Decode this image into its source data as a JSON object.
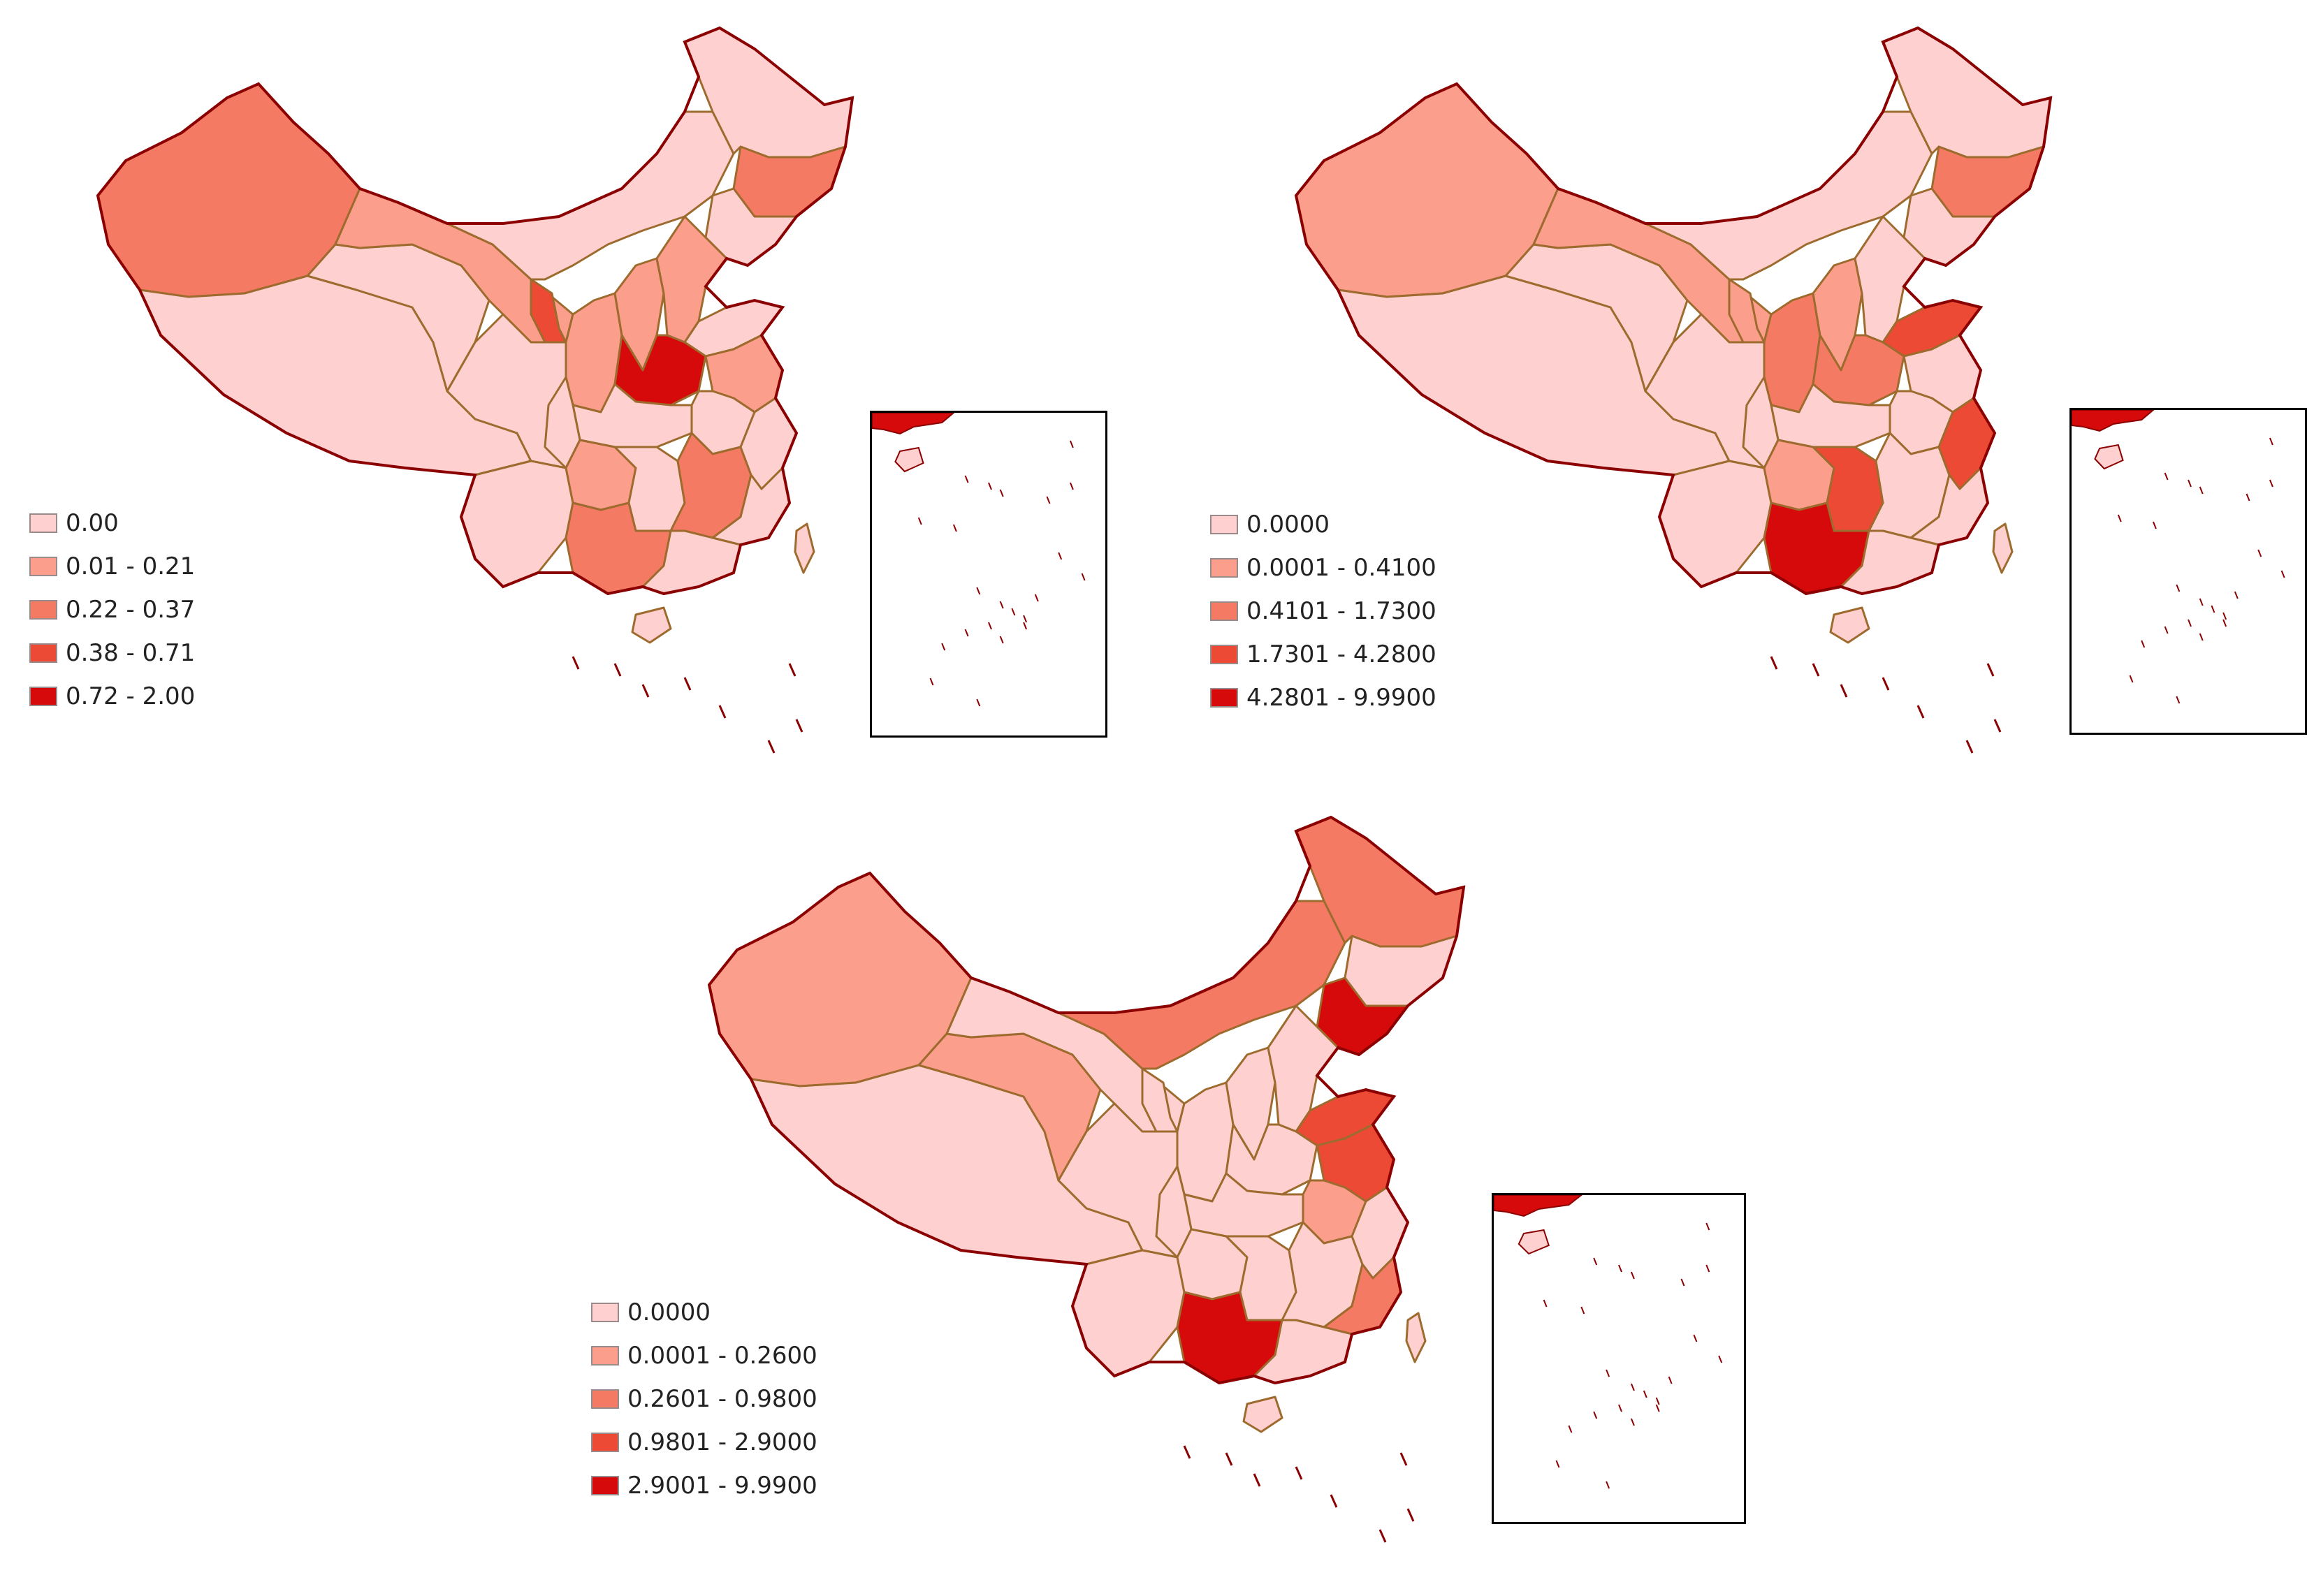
{
  "colors": {
    "class0": "#ffd0d0",
    "class1": "#fb9e8c",
    "class2": "#f57a64",
    "class3": "#ec4a34",
    "class4": "#d60a0a",
    "border": "#9e6b2e",
    "coast": "#8b0000"
  },
  "maps": [
    {
      "legend": [
        "0.00",
        "0.01 - 0.21",
        "0.22 - 0.37",
        "0.38 - 0.71",
        "0.72 - 2.00"
      ],
      "regions": {
        "xinjiang": 2,
        "tibet": 0,
        "qinghai": 0,
        "gansu": 1,
        "inner_mongolia": 0,
        "heilongjiang": 0,
        "jilin": 2,
        "liaoning": 0,
        "ningxia": 3,
        "shaanxi": 1,
        "shanxi": 1,
        "hebei": 1,
        "shandong": 0,
        "henan": 4,
        "jiangsu": 1,
        "anhui": 0,
        "hubei": 0,
        "sichuan": 0,
        "chongqing": 0,
        "yunnan": 0,
        "guizhou": 1,
        "hunan": 0,
        "jiangxi": 2,
        "zhejiang": 0,
        "fujian": 0,
        "guangxi": 2,
        "guangdong": 0,
        "hainan": 0,
        "taiwan": 0
      }
    },
    {
      "legend": [
        "0.0000",
        "0.0001 - 0.4100",
        "0.4101 - 1.7300",
        "1.7301 - 4.2800",
        "4.2801 - 9.9900"
      ],
      "regions": {
        "xinjiang": 1,
        "tibet": 0,
        "qinghai": 0,
        "gansu": 1,
        "inner_mongolia": 0,
        "heilongjiang": 0,
        "jilin": 2,
        "liaoning": 0,
        "ningxia": 1,
        "shaanxi": 2,
        "shanxi": 1,
        "hebei": 0,
        "shandong": 3,
        "henan": 2,
        "jiangsu": 0,
        "anhui": 0,
        "hubei": 0,
        "sichuan": 0,
        "chongqing": 0,
        "yunnan": 0,
        "guizhou": 1,
        "hunan": 3,
        "jiangxi": 0,
        "zhejiang": 3,
        "fujian": 0,
        "guangxi": 4,
        "guangdong": 0,
        "hainan": 0,
        "taiwan": 0
      }
    },
    {
      "legend": [
        "0.0000",
        "0.0001 - 0.2600",
        "0.2601 - 0.9800",
        "0.9801 - 2.9000",
        "2.9001 - 9.9900"
      ],
      "regions": {
        "xinjiang": 1,
        "tibet": 0,
        "qinghai": 1,
        "gansu": 0,
        "inner_mongolia": 2,
        "heilongjiang": 2,
        "jilin": 0,
        "liaoning": 4,
        "ningxia": 0,
        "shaanxi": 0,
        "shanxi": 0,
        "hebei": 0,
        "shandong": 3,
        "henan": 0,
        "jiangsu": 3,
        "anhui": 1,
        "hubei": 0,
        "sichuan": 0,
        "chongqing": 0,
        "yunnan": 0,
        "guizhou": 0,
        "hunan": 0,
        "jiangxi": 0,
        "zhejiang": 0,
        "fujian": 2,
        "guangxi": 4,
        "guangdong": 0,
        "hainan": 0,
        "taiwan": 0
      }
    }
  ]
}
